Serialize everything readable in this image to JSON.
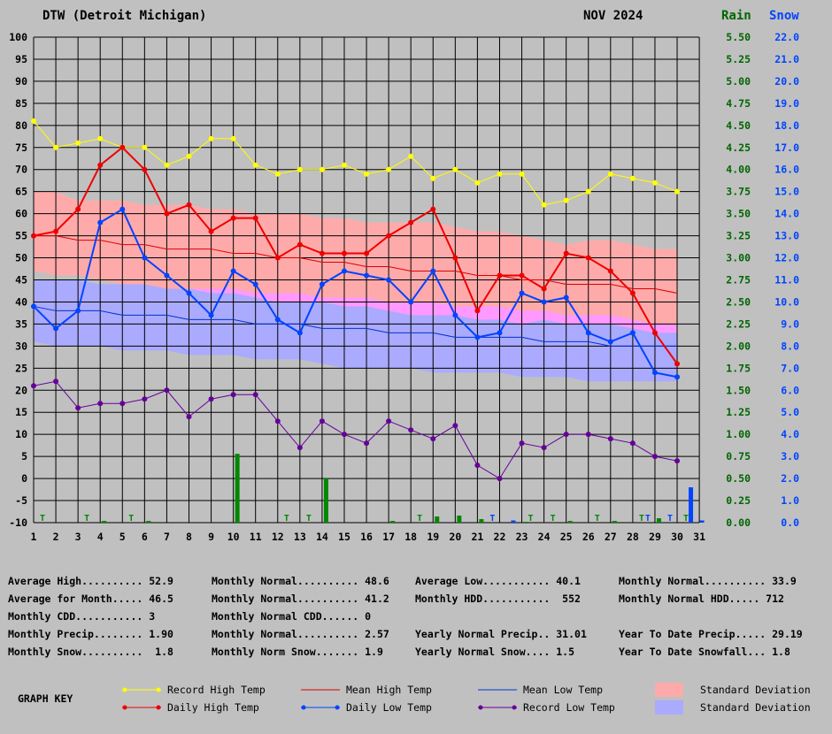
{
  "header": {
    "station": "DTW (Detroit Michigan)",
    "period": "NOV 2024",
    "rain_label": "Rain",
    "snow_label": "Snow"
  },
  "colors": {
    "record_high": "#ffff00",
    "daily_high": "#ee0000",
    "mean_high": "#dd0000",
    "mean_low": "#0033cc",
    "daily_low": "#0044ff",
    "record_low": "#660099",
    "high_sd": "#ffaaaa",
    "low_sd": "#aaaaff",
    "overlap_sd": "#ff99ff",
    "rain": "#008800",
    "snow": "#0044ff",
    "rain_axis": "#006600",
    "snow_axis": "#0044ff"
  },
  "chart_data": {
    "type": "line",
    "days": [
      1,
      2,
      3,
      4,
      5,
      6,
      7,
      8,
      9,
      10,
      11,
      12,
      13,
      14,
      15,
      16,
      17,
      18,
      19,
      20,
      21,
      22,
      23,
      24,
      25,
      26,
      27,
      28,
      29,
      30
    ],
    "x_ticks": [
      1,
      2,
      3,
      4,
      5,
      6,
      7,
      8,
      9,
      10,
      11,
      12,
      13,
      14,
      15,
      16,
      17,
      18,
      19,
      20,
      21,
      22,
      23,
      24,
      25,
      26,
      27,
      28,
      29,
      30,
      31
    ],
    "temp_ylim": [
      -10,
      100
    ],
    "temp_ticks": [
      100,
      95,
      90,
      85,
      80,
      75,
      70,
      65,
      60,
      55,
      50,
      45,
      40,
      35,
      30,
      25,
      20,
      15,
      10,
      5,
      0,
      -5,
      -10
    ],
    "rain_ticks": [
      "5.50",
      "5.25",
      "5.00",
      "4.75",
      "4.50",
      "4.25",
      "4.00",
      "3.75",
      "3.50",
      "3.25",
      "3.00",
      "2.75",
      "2.50",
      "2.25",
      "2.00",
      "1.75",
      "1.50",
      "1.25",
      "1.00",
      "0.75",
      "0.50",
      "0.25",
      "0.00"
    ],
    "snow_ticks": [
      "22.0",
      "21.0",
      "20.0",
      "19.0",
      "18.0",
      "17.0",
      "16.0",
      "15.0",
      "14.0",
      "13.0",
      "12.0",
      "11.0",
      "10.0",
      "9.0",
      "8.0",
      "7.0",
      "6.0",
      "5.0",
      "4.0",
      "3.0",
      "2.0",
      "1.0",
      "0.0"
    ],
    "record_high": [
      81,
      75,
      76,
      77,
      75,
      75,
      71,
      73,
      77,
      77,
      71,
      69,
      70,
      70,
      71,
      69,
      70,
      73,
      68,
      70,
      67,
      69,
      69,
      62,
      63,
      65,
      69,
      68,
      67,
      65
    ],
    "daily_high": [
      55,
      56,
      61,
      71,
      75,
      70,
      60,
      62,
      56,
      59,
      59,
      50,
      53,
      51,
      51,
      51,
      55,
      58,
      61,
      50,
      38,
      46,
      46,
      43,
      51,
      50,
      47,
      42,
      33,
      26
    ],
    "mean_high": [
      55,
      55,
      54,
      54,
      53,
      53,
      52,
      52,
      52,
      51,
      51,
      50,
      50,
      49,
      49,
      48,
      48,
      47,
      47,
      47,
      46,
      46,
      45,
      45,
      44,
      44,
      44,
      43,
      43,
      42
    ],
    "mean_low": [
      39,
      38,
      38,
      38,
      37,
      37,
      37,
      36,
      36,
      36,
      35,
      35,
      35,
      34,
      34,
      34,
      33,
      33,
      33,
      32,
      32,
      32,
      32,
      31,
      31,
      31,
      30,
      30,
      30,
      30
    ],
    "daily_low": [
      39,
      34,
      38,
      58,
      61,
      50,
      46,
      42,
      37,
      47,
      44,
      36,
      33,
      44,
      47,
      46,
      45,
      40,
      47,
      37,
      32,
      33,
      42,
      40,
      41,
      33,
      31,
      33,
      24,
      23
    ],
    "record_low": [
      21,
      22,
      16,
      17,
      17,
      18,
      20,
      14,
      18,
      19,
      19,
      13,
      7,
      13,
      10,
      8,
      13,
      11,
      9,
      12,
      3,
      0,
      8,
      7,
      10,
      10,
      9,
      8,
      5,
      4
    ],
    "high_sd_upper": [
      65,
      65,
      63,
      63,
      63,
      62,
      62,
      62,
      61,
      61,
      60,
      60,
      60,
      59,
      59,
      58,
      58,
      58,
      58,
      57,
      56,
      56,
      55,
      54,
      53,
      54,
      54,
      53,
      52,
      52
    ],
    "high_sd_lower": [
      47,
      46,
      46,
      45,
      44,
      44,
      43,
      43,
      42,
      42,
      41,
      40,
      40,
      40,
      39,
      39,
      38,
      37,
      37,
      37,
      36,
      36,
      35,
      36,
      35,
      35,
      35,
      34,
      33,
      33
    ],
    "low_sd_upper": [
      45,
      45,
      45,
      44,
      44,
      44,
      43,
      43,
      43,
      43,
      42,
      42,
      42,
      41,
      41,
      41,
      40,
      40,
      40,
      39,
      39,
      39,
      38,
      38,
      37,
      37,
      37,
      36,
      35,
      35
    ],
    "low_sd_lower": [
      31,
      30,
      30,
      30,
      29,
      29,
      29,
      28,
      28,
      28,
      27,
      27,
      27,
      26,
      25,
      25,
      25,
      25,
      24,
      24,
      24,
      24,
      23,
      23,
      23,
      22,
      22,
      22,
      22,
      22
    ],
    "precip": [
      {
        "day": 1,
        "trace": true
      },
      {
        "day": 3,
        "trace": true
      },
      {
        "day": 4,
        "rain": 0.02
      },
      {
        "day": 5,
        "trace": true
      },
      {
        "day": 6,
        "rain": 0.02
      },
      {
        "day": 10,
        "rain": 0.78
      },
      {
        "day": 12,
        "trace": true
      },
      {
        "day": 13,
        "trace": true
      },
      {
        "day": 14,
        "rain": 0.5
      },
      {
        "day": 17,
        "rain": 0.02
      },
      {
        "day": 18,
        "trace": true
      },
      {
        "day": 19,
        "rain": 0.07
      },
      {
        "day": 20,
        "rain": 0.08
      },
      {
        "day": 21,
        "rain": 0.04,
        "snow_trace": true
      },
      {
        "day": 22,
        "snow": 0.1
      },
      {
        "day": 23,
        "rain": 0.01,
        "trace": true
      },
      {
        "day": 24,
        "trace": true
      },
      {
        "day": 25,
        "rain": 0.02
      },
      {
        "day": 26,
        "trace": true
      },
      {
        "day": 27,
        "rain": 0.02
      },
      {
        "day": 28,
        "trace": true,
        "snow_trace": true
      },
      {
        "day": 29,
        "rain": 0.05,
        "snow_trace": true
      },
      {
        "day": 30,
        "snow": 1.6,
        "trace": true
      },
      {
        "day": 30.5,
        "snow": 0.1
      }
    ],
    "trace_label": "T"
  },
  "stats": [
    {
      "label": "Average High..........",
      "value": "52.9",
      "col": 0,
      "row": 0
    },
    {
      "label": "Monthly Normal..........",
      "value": "48.6",
      "col": 1,
      "row": 0
    },
    {
      "label": "Average Low...........",
      "value": "40.1",
      "col": 2,
      "row": 0
    },
    {
      "label": "Monthly Normal..........",
      "value": "33.9",
      "col": 3,
      "row": 0
    },
    {
      "label": "Average for Month.....",
      "value": "46.5",
      "col": 0,
      "row": 1
    },
    {
      "label": "Monthly Normal..........",
      "value": "41.2",
      "col": 1,
      "row": 1
    },
    {
      "label": "Monthly HDD...........",
      "value": " 552",
      "col": 2,
      "row": 1
    },
    {
      "label": "Monthly Normal HDD.....",
      "value": "712",
      "col": 3,
      "row": 1
    },
    {
      "label": "Monthly CDD...........",
      "value": "3",
      "col": 0,
      "row": 2
    },
    {
      "label": "Monthly Normal CDD......",
      "value": "0",
      "col": 1,
      "row": 2
    },
    {
      "label": "Monthly Precip........",
      "value": "1.90",
      "col": 0,
      "row": 3
    },
    {
      "label": "Monthly Normal..........",
      "value": "2.57",
      "col": 1,
      "row": 3
    },
    {
      "label": "Yearly Normal Precip..",
      "value": "31.01",
      "col": 2,
      "row": 3
    },
    {
      "label": "Year To Date Precip.....",
      "value": "29.19",
      "col": 3,
      "row": 3
    },
    {
      "label": "Monthly Snow..........",
      "value": " 1.8",
      "col": 0,
      "row": 4
    },
    {
      "label": "Monthly Norm Snow.......",
      "value": "1.9",
      "col": 1,
      "row": 4
    },
    {
      "label": "Yearly Normal Snow....",
      "value": "1.5",
      "col": 2,
      "row": 4
    },
    {
      "label": "Year To Date Snowfall...",
      "value": "1.8",
      "col": 3,
      "row": 4
    }
  ],
  "key": {
    "title": "GRAPH KEY",
    "items": [
      {
        "label": "Record High Temp",
        "kind": "record_high"
      },
      {
        "label": "Mean High Temp",
        "kind": "mean_high"
      },
      {
        "label": "Mean Low Temp",
        "kind": "mean_low"
      },
      {
        "label": "Standard Deviation",
        "kind": "high_sd"
      },
      {
        "label": "Daily High Temp",
        "kind": "daily_high"
      },
      {
        "label": "Daily Low Temp",
        "kind": "daily_low"
      },
      {
        "label": "Record Low Temp",
        "kind": "record_low"
      },
      {
        "label": "Standard Deviation",
        "kind": "low_sd"
      }
    ]
  }
}
